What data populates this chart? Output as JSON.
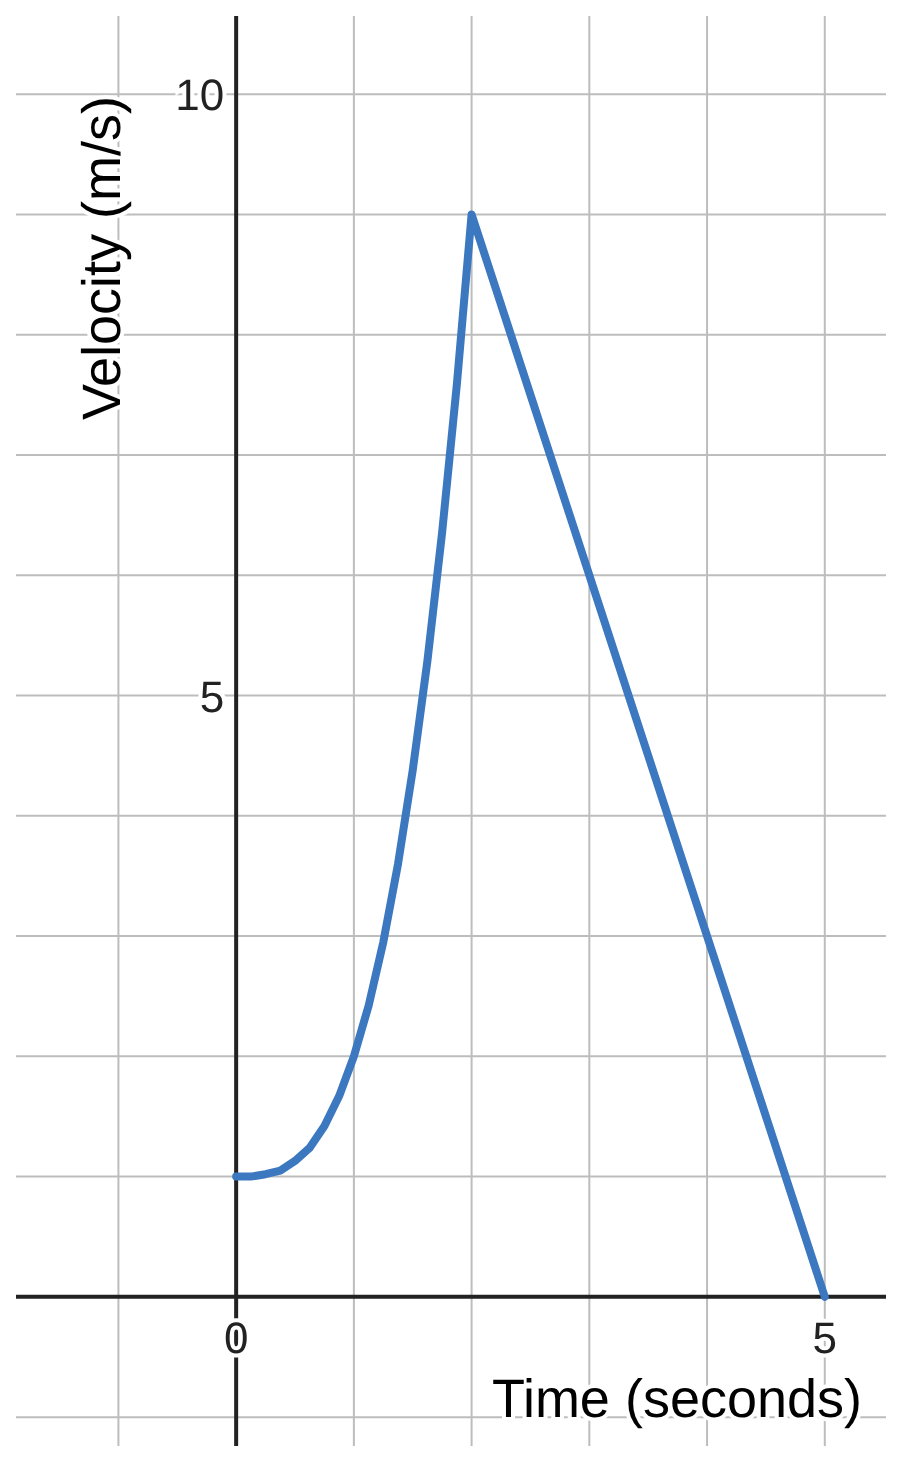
{
  "chart_data": {
    "type": "line",
    "xlabel": "Time (seconds)",
    "ylabel": "Velocity (m/s)",
    "x": [
      0,
      0.125,
      0.25,
      0.375,
      0.5,
      0.625,
      0.75,
      0.875,
      1,
      1.125,
      1.25,
      1.375,
      1.5,
      1.625,
      1.75,
      1.875,
      2,
      5
    ],
    "series": [
      {
        "color": "#3c78c0",
        "values": [
          1,
          1,
          1.02,
          1.05,
          1.13,
          1.24,
          1.42,
          1.67,
          2,
          2.42,
          2.95,
          3.6,
          4.38,
          5.29,
          6.36,
          7.59,
          9,
          0
        ]
      }
    ],
    "xlim": [
      -1.87,
      5.52
    ],
    "ylim": [
      -1.24,
      10.65
    ],
    "xticks": [
      {
        "value": -1,
        "label": null
      },
      0,
      {
        "value": 1,
        "label": null
      },
      {
        "value": 2,
        "label": null
      },
      {
        "value": 3,
        "label": null
      },
      {
        "value": 4,
        "label": null
      },
      5
    ],
    "yticks": [
      {
        "value": -1,
        "label": null
      },
      {
        "value": 0,
        "label": null
      },
      {
        "value": 1,
        "label": null
      },
      {
        "value": 2,
        "label": null
      },
      {
        "value": 3,
        "label": null
      },
      {
        "value": 4,
        "label": null
      },
      5,
      {
        "value": 6,
        "label": null
      },
      {
        "value": 7,
        "label": null
      },
      {
        "value": 8,
        "label": null
      },
      {
        "value": 9,
        "label": null
      },
      10
    ],
    "grid": true,
    "marker": "none",
    "line_style": "solid"
  }
}
